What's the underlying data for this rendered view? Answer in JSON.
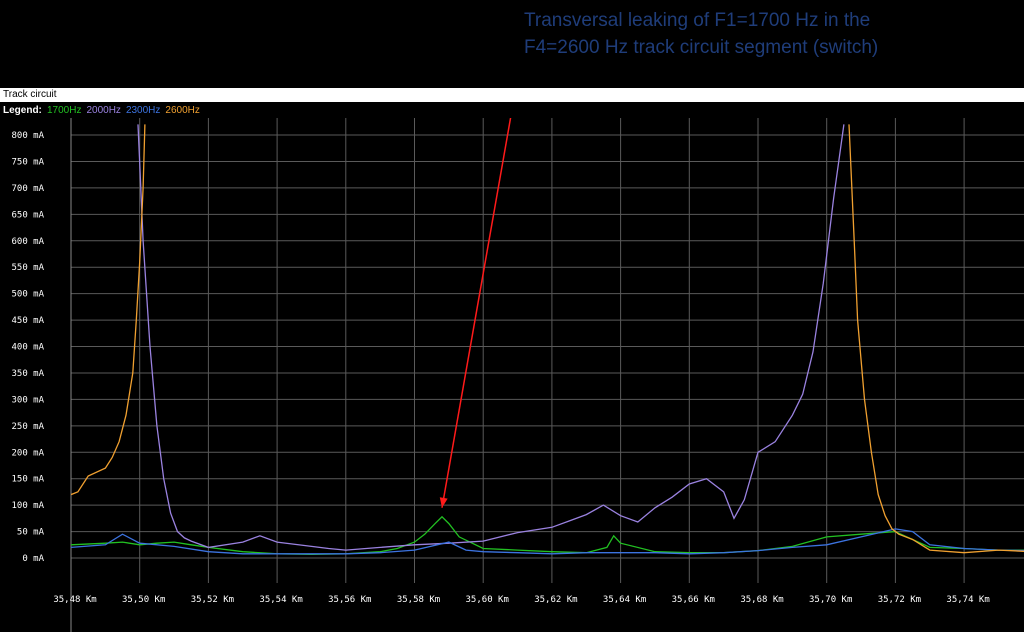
{
  "annotation": {
    "line1": "Transversal leaking of F1=1700 Hz in the",
    "line2": "F4=2600 Hz track circuit segment (switch)"
  },
  "panel": {
    "title": "Track circuit",
    "legend_label": "Legend:"
  },
  "colors": {
    "annotation": "#1f3d7a",
    "arrow": "#ff1a1a",
    "grid": "#5a5a5a"
  },
  "chart_data": {
    "type": "line",
    "title": "",
    "xlabel": "",
    "ylabel": "",
    "xlim": [
      35.48,
      35.76
    ],
    "ylim": [
      0,
      800
    ],
    "x_ticks": [
      "35,48 Km",
      "35,50 Km",
      "35,52 Km",
      "35,54 Km",
      "35,56 Km",
      "35,58 Km",
      "35,60 Km",
      "35,62 Km",
      "35,64 Km",
      "35,66 Km",
      "35,68 Km",
      "35,70 Km",
      "35,72 Km",
      "35,74 Km"
    ],
    "y_ticks": [
      "800 mA",
      "750 mA",
      "700 mA",
      "650 mA",
      "600 mA",
      "550 mA",
      "500 mA",
      "450 mA",
      "400 mA",
      "350 mA",
      "300 mA",
      "250 mA",
      "200 mA",
      "150 mA",
      "100 mA",
      "50 mA",
      "0 mA"
    ],
    "grid": true,
    "legend_position": "top-left",
    "series": [
      {
        "name": "1700Hz",
        "color": "#22c022",
        "points": [
          [
            35.48,
            25
          ],
          [
            35.49,
            28
          ],
          [
            35.495,
            30
          ],
          [
            35.5,
            25
          ],
          [
            35.505,
            28
          ],
          [
            35.51,
            30
          ],
          [
            35.515,
            25
          ],
          [
            35.52,
            20
          ],
          [
            35.53,
            12
          ],
          [
            35.54,
            8
          ],
          [
            35.55,
            7
          ],
          [
            35.56,
            8
          ],
          [
            35.57,
            12
          ],
          [
            35.575,
            18
          ],
          [
            35.58,
            30
          ],
          [
            35.583,
            45
          ],
          [
            35.586,
            65
          ],
          [
            35.588,
            78
          ],
          [
            35.59,
            65
          ],
          [
            35.593,
            40
          ],
          [
            35.6,
            18
          ],
          [
            35.61,
            15
          ],
          [
            35.62,
            12
          ],
          [
            35.63,
            10
          ],
          [
            35.636,
            20
          ],
          [
            35.638,
            42
          ],
          [
            35.64,
            28
          ],
          [
            35.65,
            12
          ],
          [
            35.66,
            10
          ],
          [
            35.67,
            10
          ],
          [
            35.68,
            14
          ],
          [
            35.69,
            22
          ],
          [
            35.7,
            40
          ],
          [
            35.71,
            45
          ],
          [
            35.72,
            50
          ],
          [
            35.73,
            20
          ],
          [
            35.74,
            18
          ],
          [
            35.75,
            15
          ],
          [
            35.76,
            15
          ]
        ]
      },
      {
        "name": "2000Hz",
        "color": "#9a82e0",
        "points": [
          [
            35.4995,
            820
          ],
          [
            35.501,
            600
          ],
          [
            35.503,
            400
          ],
          [
            35.505,
            250
          ],
          [
            35.507,
            150
          ],
          [
            35.509,
            85
          ],
          [
            35.511,
            50
          ],
          [
            35.513,
            38
          ],
          [
            35.515,
            32
          ],
          [
            35.52,
            20
          ],
          [
            35.53,
            30
          ],
          [
            35.535,
            42
          ],
          [
            35.54,
            30
          ],
          [
            35.55,
            22
          ],
          [
            35.555,
            18
          ],
          [
            35.56,
            15
          ],
          [
            35.57,
            20
          ],
          [
            35.58,
            25
          ],
          [
            35.59,
            28
          ],
          [
            35.6,
            32
          ],
          [
            35.61,
            48
          ],
          [
            35.62,
            58
          ],
          [
            35.625,
            70
          ],
          [
            35.63,
            82
          ],
          [
            35.635,
            100
          ],
          [
            35.64,
            80
          ],
          [
            35.645,
            68
          ],
          [
            35.65,
            95
          ],
          [
            35.655,
            115
          ],
          [
            35.66,
            140
          ],
          [
            35.665,
            150
          ],
          [
            35.67,
            125
          ],
          [
            35.673,
            75
          ],
          [
            35.676,
            110
          ],
          [
            35.68,
            200
          ],
          [
            35.685,
            220
          ],
          [
            35.69,
            270
          ],
          [
            35.693,
            310
          ],
          [
            35.696,
            390
          ],
          [
            35.699,
            520
          ],
          [
            35.702,
            680
          ],
          [
            35.705,
            820
          ]
        ]
      },
      {
        "name": "2300Hz",
        "color": "#3c73e0",
        "points": [
          [
            35.48,
            20
          ],
          [
            35.49,
            25
          ],
          [
            35.495,
            45
          ],
          [
            35.5,
            28
          ],
          [
            35.51,
            22
          ],
          [
            35.52,
            12
          ],
          [
            35.53,
            8
          ],
          [
            35.54,
            8
          ],
          [
            35.55,
            8
          ],
          [
            35.56,
            8
          ],
          [
            35.57,
            10
          ],
          [
            35.58,
            15
          ],
          [
            35.59,
            30
          ],
          [
            35.595,
            15
          ],
          [
            35.6,
            12
          ],
          [
            35.61,
            10
          ],
          [
            35.62,
            8
          ],
          [
            35.63,
            10
          ],
          [
            35.64,
            10
          ],
          [
            35.65,
            10
          ],
          [
            35.66,
            8
          ],
          [
            35.67,
            10
          ],
          [
            35.68,
            14
          ],
          [
            35.69,
            20
          ],
          [
            35.7,
            25
          ],
          [
            35.71,
            40
          ],
          [
            35.72,
            55
          ],
          [
            35.725,
            50
          ],
          [
            35.73,
            25
          ],
          [
            35.74,
            18
          ],
          [
            35.75,
            15
          ],
          [
            35.76,
            14
          ]
        ]
      },
      {
        "name": "2600Hz",
        "color": "#f0a030",
        "points": [
          [
            35.48,
            120
          ],
          [
            35.482,
            125
          ],
          [
            35.485,
            155
          ],
          [
            35.49,
            170
          ],
          [
            35.492,
            190
          ],
          [
            35.494,
            220
          ],
          [
            35.496,
            270
          ],
          [
            35.498,
            350
          ],
          [
            35.499,
            450
          ],
          [
            35.5,
            560
          ],
          [
            35.501,
            700
          ],
          [
            35.5015,
            820
          ]
        ]
      },
      {
        "name": "2600Hz",
        "color": "#f0a030",
        "points": [
          [
            35.7065,
            820
          ],
          [
            35.708,
            600
          ],
          [
            35.709,
            450
          ],
          [
            35.711,
            300
          ],
          [
            35.713,
            200
          ],
          [
            35.715,
            120
          ],
          [
            35.717,
            80
          ],
          [
            35.719,
            55
          ],
          [
            35.721,
            45
          ],
          [
            35.725,
            35
          ],
          [
            35.73,
            15
          ],
          [
            35.74,
            10
          ],
          [
            35.75,
            15
          ],
          [
            35.76,
            12
          ]
        ]
      }
    ]
  }
}
